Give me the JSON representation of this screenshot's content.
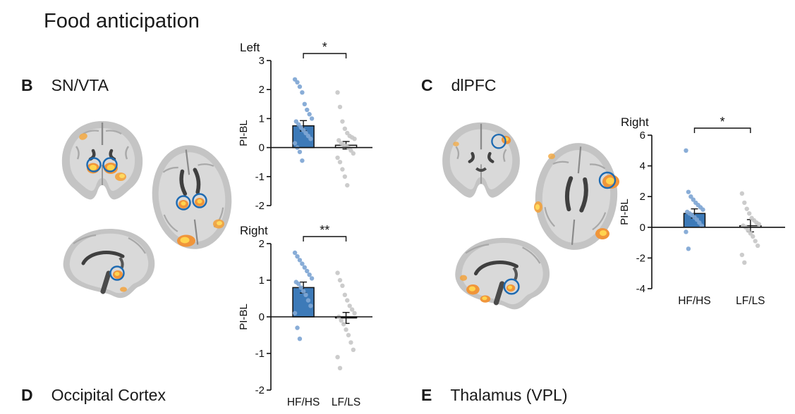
{
  "figure": {
    "title": "Food anticipation",
    "panels": [
      {
        "id": "B",
        "letter": "B",
        "label": "SN/VTA"
      },
      {
        "id": "C",
        "letter": "C",
        "label": "dlPFC"
      },
      {
        "id": "D",
        "letter": "D",
        "label": "Occipital Cortex"
      },
      {
        "id": "E",
        "letter": "E",
        "label": "Thalamus (VPL)"
      }
    ]
  },
  "colors": {
    "bar_fill_blue": "#3d7ab8",
    "bar_fill_white": "#ffffff",
    "scatter_blue": "#7fa6d4",
    "scatter_gray": "#c8c8c8",
    "roi_circle_blue": "#1d6ab2",
    "activation_orange": "#f0953a",
    "activation_yellow": "#ffd44f",
    "axis_black": "#111111"
  },
  "chart_data": [
    {
      "id": "b_left",
      "type": "bar",
      "title": "Left",
      "ylabel": "PI-BL",
      "ylim": [
        -2,
        3
      ],
      "yticks": [
        3,
        2,
        1,
        0,
        -1,
        -2
      ],
      "categories": [
        "HF/HS",
        "LF/LS"
      ],
      "show_xlabels": false,
      "significance": "*",
      "bar_values": [
        0.75,
        0.08
      ],
      "bar_errors": [
        0.18,
        0.13
      ],
      "bar_colors": [
        "#3d7ab8",
        "#ffffff"
      ],
      "scatter": [
        {
          "name": "HF/HS",
          "color": "#7fa6d4",
          "points": [
            2.35,
            2.25,
            2.1,
            1.9,
            1.5,
            1.3,
            1.15,
            1.0,
            0.9,
            0.8,
            0.7,
            0.6,
            0.5,
            0.4,
            0.3,
            0.15,
            0.0,
            -0.15,
            -0.45
          ]
        },
        {
          "name": "LF/LS",
          "color": "#c8c8c8",
          "points": [
            1.9,
            1.4,
            0.9,
            0.65,
            0.5,
            0.4,
            0.35,
            0.3,
            0.25,
            0.15,
            0.1,
            0.05,
            0.0,
            -0.1,
            -0.2,
            -0.35,
            -0.5,
            -0.75,
            -1.0,
            -1.3
          ]
        }
      ]
    },
    {
      "id": "b_right",
      "type": "bar",
      "title": "Right",
      "ylabel": "PI-BL",
      "ylim": [
        -2,
        2
      ],
      "yticks": [
        2,
        1,
        0,
        -1,
        -2
      ],
      "categories": [
        "HF/HS",
        "LF/LS"
      ],
      "show_xlabels": true,
      "significance": "**",
      "bar_values": [
        0.8,
        -0.03
      ],
      "bar_errors": [
        0.15,
        0.15
      ],
      "bar_colors": [
        "#3d7ab8",
        "#ffffff"
      ],
      "scatter": [
        {
          "name": "HF/HS",
          "color": "#7fa6d4",
          "points": [
            1.75,
            1.65,
            1.55,
            1.45,
            1.35,
            1.25,
            1.15,
            1.05,
            0.95,
            0.9,
            0.8,
            0.7,
            0.6,
            0.45,
            0.3,
            0.1,
            -0.3,
            -0.6
          ]
        },
        {
          "name": "LF/LS",
          "color": "#c8c8c8",
          "points": [
            1.2,
            1.0,
            0.85,
            0.6,
            0.45,
            0.3,
            0.2,
            0.1,
            0.0,
            -0.1,
            -0.2,
            -0.35,
            -0.5,
            -0.7,
            -0.9,
            -1.1,
            -1.4
          ]
        }
      ]
    },
    {
      "id": "c_right",
      "type": "bar",
      "title": "Right",
      "ylabel": "PI-BL",
      "ylim": [
        -4,
        6
      ],
      "yticks": [
        6,
        4,
        2,
        0,
        -2,
        -4
      ],
      "categories": [
        "HF/HS",
        "LF/LS"
      ],
      "show_xlabels": true,
      "significance": "*",
      "bar_values": [
        0.9,
        0.1
      ],
      "bar_errors": [
        0.3,
        0.4
      ],
      "bar_colors": [
        "#3d7ab8",
        "#ffffff"
      ],
      "scatter": [
        {
          "name": "HF/HS",
          "color": "#7fa6d4",
          "points": [
            5.0,
            2.3,
            2.0,
            1.8,
            1.6,
            1.45,
            1.3,
            1.15,
            1.0,
            0.9,
            0.8,
            0.65,
            0.5,
            0.3,
            0.1,
            -0.3,
            -1.4
          ]
        },
        {
          "name": "LF/LS",
          "color": "#c8c8c8",
          "points": [
            2.2,
            1.6,
            1.2,
            0.9,
            0.6,
            0.45,
            0.3,
            0.2,
            0.1,
            0.0,
            -0.2,
            -0.4,
            -0.6,
            -0.9,
            -1.2,
            -1.8,
            -2.3
          ]
        }
      ]
    }
  ]
}
